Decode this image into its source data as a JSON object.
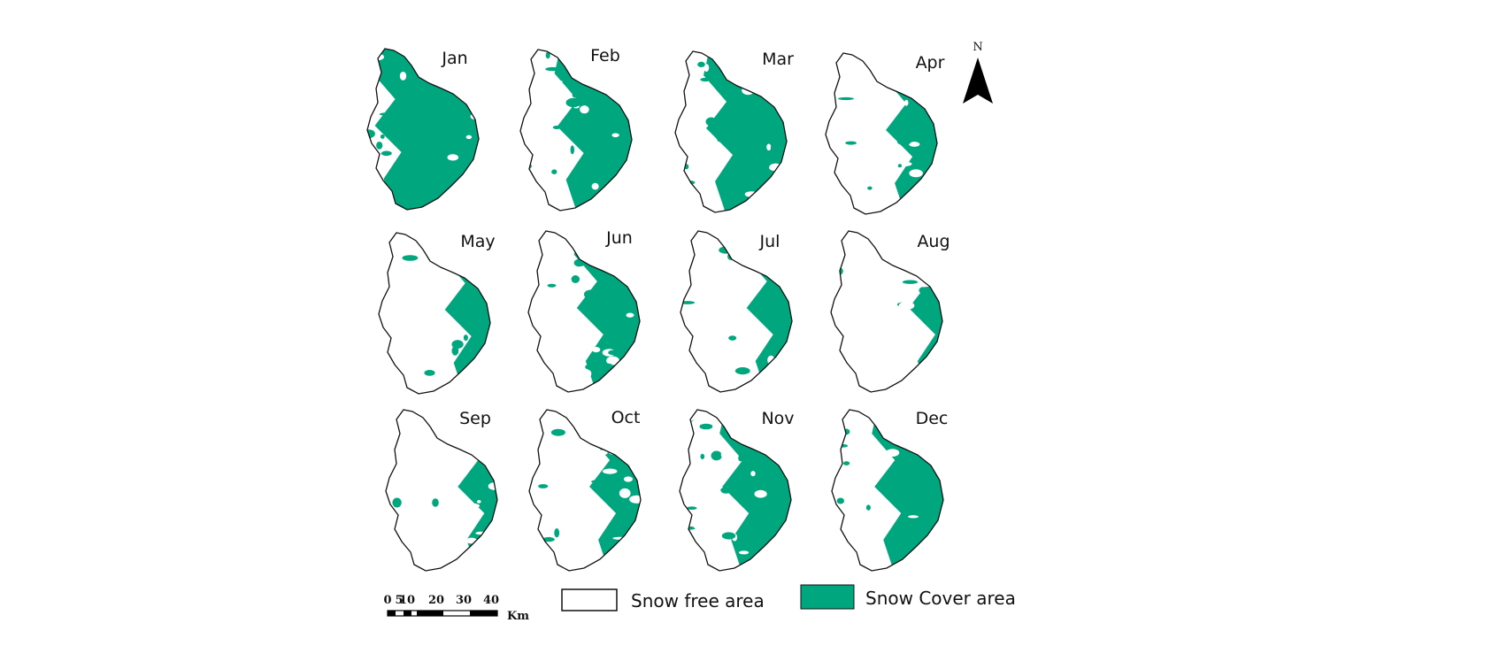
{
  "colors": {
    "snow_cover": "#00a77e",
    "snow_free": "#ffffff",
    "outline": "#111111"
  },
  "panels": [
    {
      "label": "Jan",
      "snow_fraction": 0.85
    },
    {
      "label": "Feb",
      "snow_fraction": 0.6
    },
    {
      "label": "Mar",
      "snow_fraction": 0.65
    },
    {
      "label": "Apr",
      "snow_fraction": 0.4
    },
    {
      "label": "May",
      "snow_fraction": 0.35
    },
    {
      "label": "Jun",
      "snow_fraction": 0.5
    },
    {
      "label": "Jul",
      "snow_fraction": 0.35
    },
    {
      "label": "Aug",
      "snow_fraction": 0.25
    },
    {
      "label": "Sep",
      "snow_fraction": 0.3
    },
    {
      "label": "Oct",
      "snow_fraction": 0.4
    },
    {
      "label": "Nov",
      "snow_fraction": 0.55
    },
    {
      "label": "Dec",
      "snow_fraction": 0.55
    }
  ],
  "north_arrow": {
    "label": "N",
    "icon": "north-arrow-icon"
  },
  "scale_bar": {
    "ticks": [
      "0",
      "5",
      "10",
      "20",
      "30",
      "40"
    ],
    "unit": "Km"
  },
  "legend": {
    "snow_free_label": "Snow free area",
    "snow_cover_label": "Snow Cover area"
  }
}
